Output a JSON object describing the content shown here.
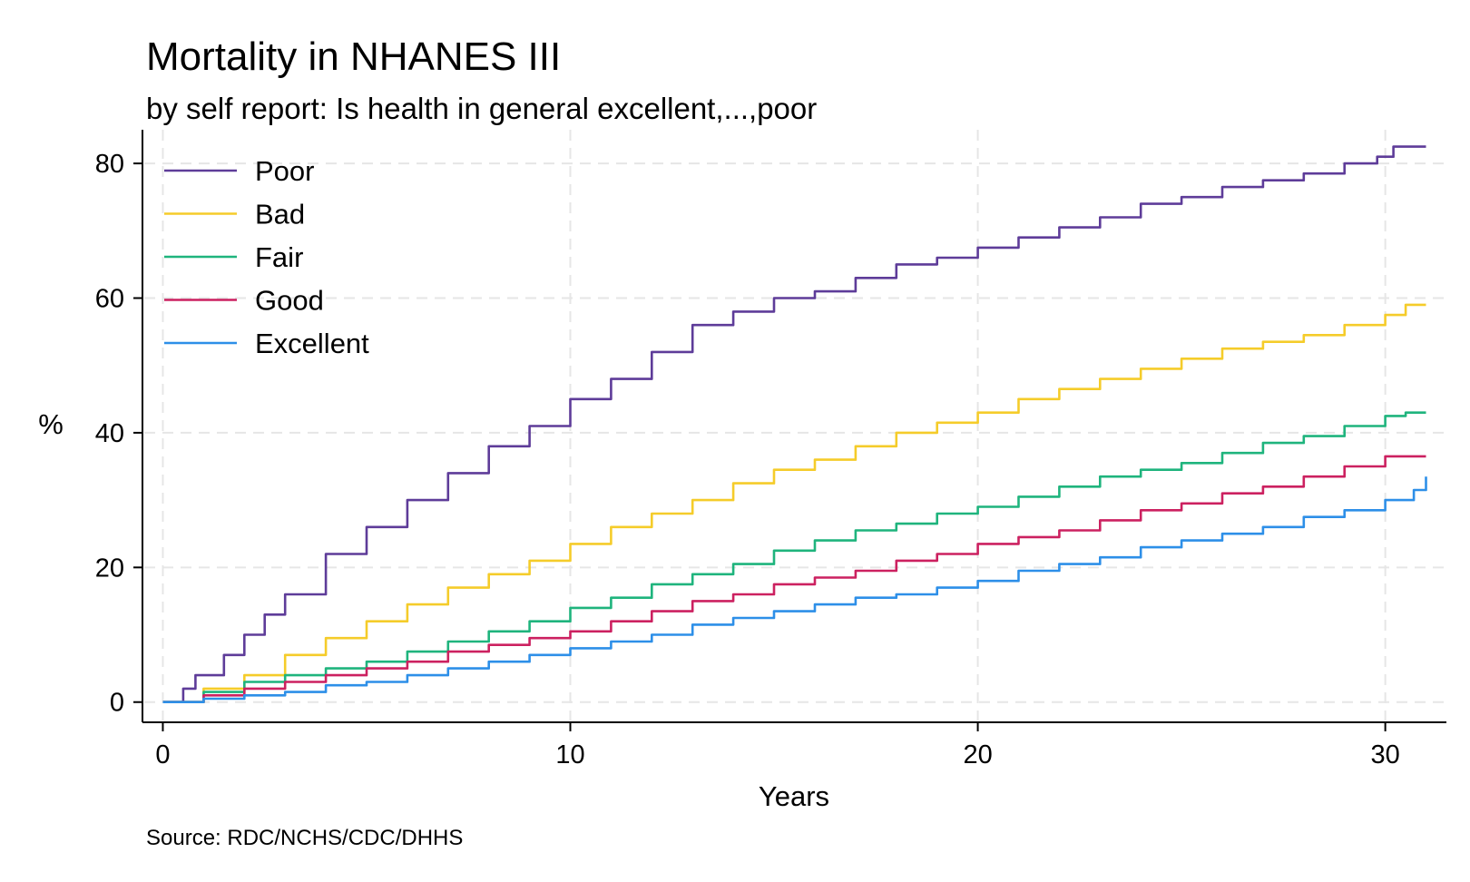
{
  "chart_data": {
    "type": "line",
    "title": "Mortality in NHANES III",
    "subtitle": "by self report: Is health in general excellent,...,poor",
    "xlabel": "Years",
    "ylabel": "%",
    "note": "Source: RDC/NCHS/CDC/DHHS",
    "xlim": [
      -0.5,
      31.5
    ],
    "ylim": [
      -3,
      85
    ],
    "xticks": [
      0,
      10,
      20,
      30
    ],
    "yticks": [
      0,
      20,
      40,
      60,
      80
    ],
    "grid": true,
    "legend_position": "top-left",
    "series": [
      {
        "name": "Poor",
        "color": "#5e3c99",
        "points": [
          [
            0,
            0
          ],
          [
            0.5,
            2
          ],
          [
            0.8,
            4
          ],
          [
            1.5,
            7
          ],
          [
            2,
            10
          ],
          [
            2.5,
            13
          ],
          [
            3,
            16
          ],
          [
            4,
            22
          ],
          [
            5,
            26
          ],
          [
            6,
            30
          ],
          [
            7,
            34
          ],
          [
            8,
            38
          ],
          [
            9,
            41
          ],
          [
            10,
            45
          ],
          [
            11,
            48
          ],
          [
            12,
            52
          ],
          [
            13,
            56
          ],
          [
            14,
            58
          ],
          [
            15,
            60
          ],
          [
            16,
            61
          ],
          [
            17,
            63
          ],
          [
            18,
            65
          ],
          [
            19,
            66
          ],
          [
            20,
            67.5
          ],
          [
            21,
            69
          ],
          [
            22,
            70.5
          ],
          [
            23,
            72
          ],
          [
            24,
            74
          ],
          [
            25,
            75
          ],
          [
            26,
            76.5
          ],
          [
            27,
            77.5
          ],
          [
            28,
            78.5
          ],
          [
            29,
            80
          ],
          [
            29.8,
            81
          ],
          [
            30.2,
            82.5
          ],
          [
            31,
            82.5
          ]
        ]
      },
      {
        "name": "Bad",
        "color": "#f5cc2a",
        "points": [
          [
            0,
            0
          ],
          [
            1,
            2
          ],
          [
            2,
            4
          ],
          [
            3,
            7
          ],
          [
            4,
            9.5
          ],
          [
            5,
            12
          ],
          [
            6,
            14.5
          ],
          [
            7,
            17
          ],
          [
            8,
            19
          ],
          [
            9,
            21
          ],
          [
            10,
            23.5
          ],
          [
            11,
            26
          ],
          [
            12,
            28
          ],
          [
            13,
            30
          ],
          [
            14,
            32.5
          ],
          [
            15,
            34.5
          ],
          [
            16,
            36
          ],
          [
            17,
            38
          ],
          [
            18,
            40
          ],
          [
            19,
            41.5
          ],
          [
            20,
            43
          ],
          [
            21,
            45
          ],
          [
            22,
            46.5
          ],
          [
            23,
            48
          ],
          [
            24,
            49.5
          ],
          [
            25,
            51
          ],
          [
            26,
            52.5
          ],
          [
            27,
            53.5
          ],
          [
            28,
            54.5
          ],
          [
            29,
            56
          ],
          [
            30,
            57.5
          ],
          [
            30.5,
            59
          ],
          [
            31,
            59
          ]
        ]
      },
      {
        "name": "Fair",
        "color": "#1fb47d",
        "points": [
          [
            0,
            0
          ],
          [
            1,
            1.5
          ],
          [
            2,
            3
          ],
          [
            3,
            4
          ],
          [
            4,
            5
          ],
          [
            5,
            6
          ],
          [
            6,
            7.5
          ],
          [
            7,
            9
          ],
          [
            8,
            10.5
          ],
          [
            9,
            12
          ],
          [
            10,
            14
          ],
          [
            11,
            15.5
          ],
          [
            12,
            17.5
          ],
          [
            13,
            19
          ],
          [
            14,
            20.5
          ],
          [
            15,
            22.5
          ],
          [
            16,
            24
          ],
          [
            17,
            25.5
          ],
          [
            18,
            26.5
          ],
          [
            19,
            28
          ],
          [
            20,
            29
          ],
          [
            21,
            30.5
          ],
          [
            22,
            32
          ],
          [
            23,
            33.5
          ],
          [
            24,
            34.5
          ],
          [
            25,
            35.5
          ],
          [
            26,
            37
          ],
          [
            27,
            38.5
          ],
          [
            28,
            39.5
          ],
          [
            29,
            41
          ],
          [
            30,
            42.5
          ],
          [
            30.5,
            43
          ],
          [
            31,
            43
          ]
        ]
      },
      {
        "name": "Good",
        "color": "#cc2160",
        "points": [
          [
            0,
            0
          ],
          [
            1,
            1
          ],
          [
            2,
            2
          ],
          [
            3,
            3
          ],
          [
            4,
            4
          ],
          [
            5,
            5
          ],
          [
            6,
            6
          ],
          [
            7,
            7.5
          ],
          [
            8,
            8.5
          ],
          [
            9,
            9.5
          ],
          [
            10,
            10.5
          ],
          [
            11,
            12
          ],
          [
            12,
            13.5
          ],
          [
            13,
            15
          ],
          [
            14,
            16
          ],
          [
            15,
            17.5
          ],
          [
            16,
            18.5
          ],
          [
            17,
            19.5
          ],
          [
            18,
            21
          ],
          [
            19,
            22
          ],
          [
            20,
            23.5
          ],
          [
            21,
            24.5
          ],
          [
            22,
            25.5
          ],
          [
            23,
            27
          ],
          [
            24,
            28.5
          ],
          [
            25,
            29.5
          ],
          [
            26,
            31
          ],
          [
            27,
            32
          ],
          [
            28,
            33.5
          ],
          [
            29,
            35
          ],
          [
            30,
            36.5
          ],
          [
            31,
            36.5
          ]
        ]
      },
      {
        "name": "Excellent",
        "color": "#2d8fe8",
        "points": [
          [
            0,
            0
          ],
          [
            1,
            0.5
          ],
          [
            2,
            1
          ],
          [
            3,
            1.5
          ],
          [
            4,
            2.5
          ],
          [
            5,
            3
          ],
          [
            6,
            4
          ],
          [
            7,
            5
          ],
          [
            8,
            6
          ],
          [
            9,
            7
          ],
          [
            10,
            8
          ],
          [
            11,
            9
          ],
          [
            12,
            10
          ],
          [
            13,
            11.5
          ],
          [
            14,
            12.5
          ],
          [
            15,
            13.5
          ],
          [
            16,
            14.5
          ],
          [
            17,
            15.5
          ],
          [
            18,
            16
          ],
          [
            19,
            17
          ],
          [
            20,
            18
          ],
          [
            21,
            19.5
          ],
          [
            22,
            20.5
          ],
          [
            23,
            21.5
          ],
          [
            24,
            23
          ],
          [
            25,
            24
          ],
          [
            26,
            25
          ],
          [
            27,
            26
          ],
          [
            28,
            27.5
          ],
          [
            29,
            28.5
          ],
          [
            30,
            30
          ],
          [
            30.7,
            31.5
          ],
          [
            31,
            33.5
          ]
        ]
      }
    ]
  }
}
